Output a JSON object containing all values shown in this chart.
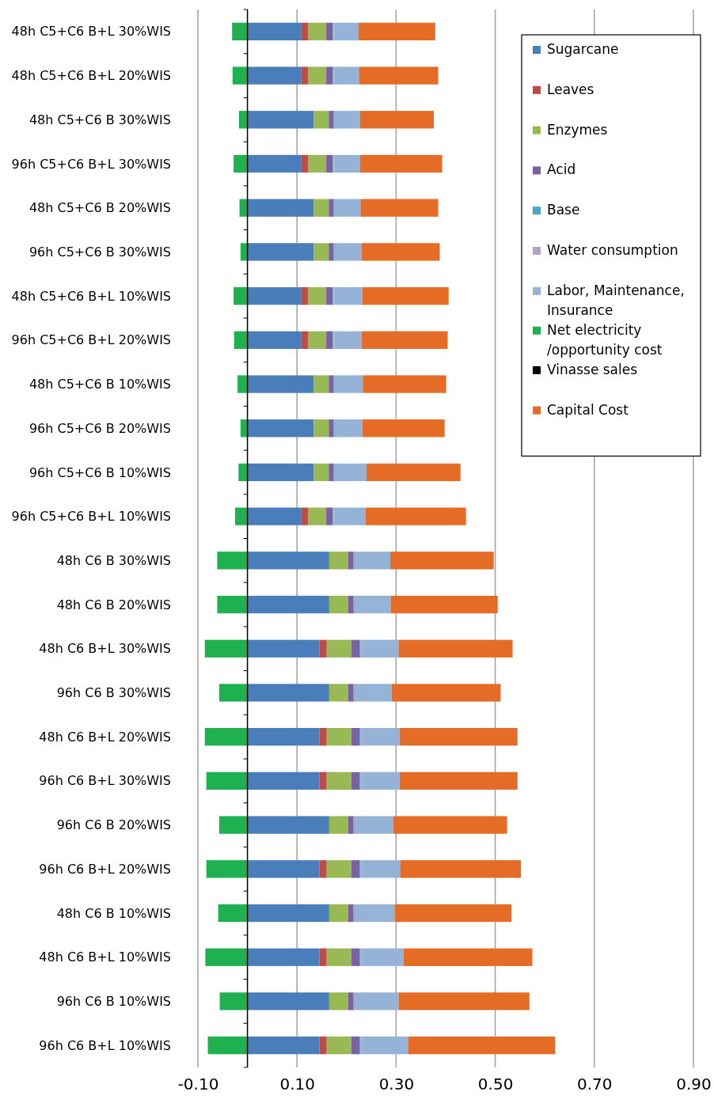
{
  "chart_data": {
    "type": "bar",
    "orientation": "horizontal",
    "stacked": true,
    "categories": [
      "48h C5+C6 B+L 30%WIS",
      "48h C5+C6 B+L 20%WIS",
      "48h C5+C6 B 30%WIS",
      "96h C5+C6 B+L 30%WIS",
      "48h C5+C6 B 20%WIS",
      "96h C5+C6 B 30%WIS",
      "48h C5+C6 B+L 10%WIS",
      "96h C5+C6 B+L 20%WIS",
      "48h C5+C6 B 10%WIS",
      "96h C5+C6 B 20%WIS",
      "96h C5+C6 B 10%WIS",
      "96h C5+C6 B+L 10%WIS",
      "48h C6 B 30%WIS",
      "48h C6 B 20%WIS",
      "48h C6 B+L 30%WIS",
      "96h C6 B 30%WIS",
      "48h C6 B+L 20%WIS",
      "96h C6 B+L 30%WIS",
      "96h C6 B 20%WIS",
      "96h C6 B+L 20%WIS",
      "48h C6 B 10%WIS",
      "48h C6 B+L 10%WIS",
      "96h C6 B 10%WIS",
      "96h C6 B+L 10%WIS"
    ],
    "series": [
      {
        "name": "Sugarcane",
        "color": "#4a7ebb",
        "values": [
          0.109,
          0.109,
          0.134,
          0.109,
          0.134,
          0.134,
          0.109,
          0.109,
          0.134,
          0.134,
          0.134,
          0.109,
          0.165,
          0.165,
          0.145,
          0.165,
          0.145,
          0.145,
          0.165,
          0.145,
          0.165,
          0.145,
          0.165,
          0.145
        ]
      },
      {
        "name": "Leaves",
        "color": "#be4b48",
        "values": [
          0.013,
          0.013,
          0,
          0.013,
          0,
          0,
          0.013,
          0.013,
          0,
          0,
          0,
          0.013,
          0,
          0,
          0.015,
          0,
          0.015,
          0.015,
          0,
          0.015,
          0,
          0.015,
          0,
          0.015
        ]
      },
      {
        "name": "Enzymes",
        "color": "#98b954",
        "values": [
          0.037,
          0.037,
          0.03,
          0.037,
          0.03,
          0.03,
          0.037,
          0.037,
          0.03,
          0.03,
          0.03,
          0.037,
          0.038,
          0.038,
          0.05,
          0.038,
          0.05,
          0.05,
          0.038,
          0.05,
          0.038,
          0.05,
          0.038,
          0.05
        ]
      },
      {
        "name": "Acid",
        "color": "#7d60a0",
        "values": [
          0.013,
          0.013,
          0.01,
          0.013,
          0.01,
          0.01,
          0.013,
          0.013,
          0.01,
          0.01,
          0.01,
          0.013,
          0.011,
          0.011,
          0.016,
          0.011,
          0.016,
          0.016,
          0.011,
          0.016,
          0.011,
          0.016,
          0.011,
          0.016
        ]
      },
      {
        "name": "Base",
        "color": "#46aac5",
        "values": [
          0.002,
          0.002,
          0.002,
          0.002,
          0.002,
          0.002,
          0.002,
          0.002,
          0.002,
          0.002,
          0.002,
          0.002,
          0.002,
          0.002,
          0.002,
          0.002,
          0.002,
          0.002,
          0.002,
          0.002,
          0.002,
          0.002,
          0.002,
          0.002
        ]
      },
      {
        "name": "Water consumption",
        "color": "#b3a2c7",
        "values": [
          0.002,
          0.002,
          0.002,
          0.002,
          0.002,
          0.002,
          0.002,
          0.002,
          0.002,
          0.002,
          0.002,
          0.002,
          0.002,
          0.002,
          0.003,
          0.002,
          0.003,
          0.003,
          0.002,
          0.003,
          0.002,
          0.003,
          0.002,
          0.003
        ]
      },
      {
        "name": "Labor, Maintenance, Insurance",
        "color": "#95b3d7",
        "values": [
          0.048,
          0.049,
          0.049,
          0.051,
          0.05,
          0.052,
          0.056,
          0.054,
          0.055,
          0.054,
          0.062,
          0.062,
          0.07,
          0.071,
          0.074,
          0.073,
          0.076,
          0.076,
          0.076,
          0.077,
          0.079,
          0.084,
          0.087,
          0.093
        ]
      },
      {
        "name": "Net electricity /opportunity cost",
        "color": "#1fb14f",
        "values": [
          -0.031,
          -0.03,
          -0.017,
          -0.028,
          -0.016,
          -0.014,
          -0.028,
          -0.027,
          -0.02,
          -0.014,
          -0.018,
          -0.025,
          -0.061,
          -0.061,
          -0.086,
          -0.057,
          -0.086,
          -0.083,
          -0.057,
          -0.083,
          -0.059,
          -0.085,
          -0.056,
          -0.08
        ]
      },
      {
        "name": "Vinasse sales",
        "color": "#000000",
        "values": [
          0,
          0,
          0,
          0,
          0,
          0,
          0,
          0,
          0,
          0,
          0,
          0,
          0,
          0,
          0,
          0,
          0,
          0,
          0,
          0,
          0,
          0,
          0,
          0
        ]
      },
      {
        "name": "Capital Cost",
        "color": "#e46c26",
        "values": [
          0.155,
          0.16,
          0.149,
          0.166,
          0.157,
          0.158,
          0.174,
          0.174,
          0.168,
          0.166,
          0.19,
          0.203,
          0.209,
          0.216,
          0.23,
          0.22,
          0.238,
          0.238,
          0.23,
          0.244,
          0.236,
          0.26,
          0.264,
          0.297
        ]
      }
    ],
    "xlim": [
      -0.1,
      0.9
    ],
    "xticks": [
      {
        "value": -0.1,
        "label": "-0.10"
      },
      {
        "value": 0.1,
        "label": "0.10"
      },
      {
        "value": 0.3,
        "label": "0.30"
      },
      {
        "value": 0.5,
        "label": "0.50"
      },
      {
        "value": 0.7,
        "label": "0.70"
      },
      {
        "value": 0.9,
        "label": "0.90"
      }
    ],
    "grid": "x",
    "legend": "top right"
  }
}
